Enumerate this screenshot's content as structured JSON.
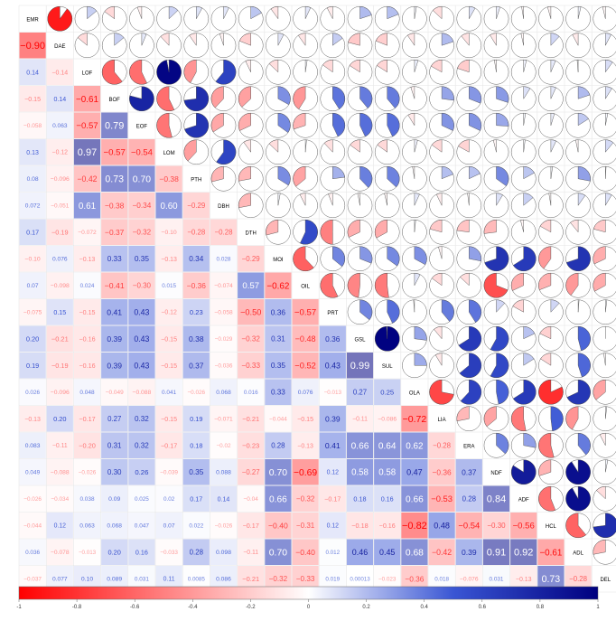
{
  "chart_data": {
    "type": "heatmap",
    "variables": [
      "EMR",
      "DAE",
      "LOF",
      "BOF",
      "EOF",
      "LOM",
      "PTH",
      "DBH",
      "DTH",
      "MOI",
      "OIL",
      "PRT",
      "GSL",
      "SUL",
      "OLA",
      "LIA",
      "ERA",
      "NDF",
      "ADF",
      "HCL",
      "ADL",
      "DEL"
    ],
    "lower_labels": [
      [],
      [
        "-0.90"
      ],
      [
        "0.14",
        "-0.14"
      ],
      [
        "-0.15",
        "0.14",
        "-0.61"
      ],
      [
        "-0.058",
        "0.063",
        "-0.57",
        "0.79"
      ],
      [
        "0.13",
        "-0.12",
        "0.97",
        "-0.57",
        "-0.54"
      ],
      [
        "0.08",
        "-0.096",
        "-0.42",
        "0.73",
        "0.70",
        "-0.38"
      ],
      [
        "0.072",
        "-0.051",
        "0.61",
        "-0.38",
        "-0.34",
        "0.60",
        "-0.29"
      ],
      [
        "0.17",
        "-0.19",
        "-0.072",
        "-0.37",
        "-0.32",
        "-0.10",
        "-0.28",
        "-0.28"
      ],
      [
        "-0.10",
        "0.076",
        "-0.13",
        "0.33",
        "0.35",
        "-0.13",
        "0.34",
        "0.028",
        "-0.29"
      ],
      [
        "0.07",
        "-0.098",
        "0.024",
        "-0.41",
        "-0.30",
        "0.015",
        "-0.36",
        "-0.074",
        "0.57",
        "-0.62"
      ],
      [
        "-0.075",
        "0.15",
        "-0.15",
        "0.41",
        "0.43",
        "-0.12",
        "0.23",
        "-0.058",
        "-0.50",
        "0.36",
        "-0.57"
      ],
      [
        "0.20",
        "-0.21",
        "-0.16",
        "0.39",
        "0.43",
        "-0.15",
        "0.38",
        "-0.029",
        "-0.32",
        "0.31",
        "-0.48",
        "0.36"
      ],
      [
        "0.19",
        "-0.19",
        "-0.16",
        "0.39",
        "0.43",
        "-0.15",
        "0.37",
        "-0.036",
        "-0.33",
        "0.35",
        "-0.52",
        "0.43",
        "0.99"
      ],
      [
        "0.026",
        "-0.096",
        "0.048",
        "-0.049",
        "-0.088",
        "0.041",
        "-0.026",
        "0.068",
        "0.016",
        "0.33",
        "0.076",
        "-0.013",
        "0.27",
        "0.25"
      ],
      [
        "-0.13",
        "0.20",
        "-0.17",
        "0.27",
        "0.32",
        "-0.15",
        "0.19",
        "-0.071",
        "-0.21",
        "-0.044",
        "-0.15",
        "0.39",
        "-0.11",
        "-0.086",
        "-0.72"
      ],
      [
        "0.083",
        "-0.11",
        "-0.20",
        "0.31",
        "0.32",
        "-0.17",
        "0.18",
        "-0.02",
        "-0.23",
        "0.28",
        "-0.13",
        "0.41",
        "0.66",
        "0.64",
        "0.62",
        "-0.28"
      ],
      [
        "0.049",
        "-0.088",
        "-0.026",
        "0.30",
        "0.26",
        "-0.039",
        "0.35",
        "0.088",
        "-0.27",
        "0.70",
        "-0.69",
        "0.12",
        "0.58",
        "0.58",
        "0.47",
        "-0.36",
        "0.37"
      ],
      [
        "-0.026",
        "-0.034",
        "0.038",
        "0.09",
        "0.025",
        "0.02",
        "0.17",
        "0.14",
        "-0.04",
        "0.66",
        "-0.32",
        "-0.17",
        "0.18",
        "0.16",
        "0.66",
        "-0.53",
        "0.28",
        "0.84"
      ],
      [
        "-0.044",
        "0.12",
        "0.063",
        "0.068",
        "0.047",
        "0.07",
        "0.022",
        "-0.026",
        "-0.17",
        "-0.40",
        "-0.31",
        "0.12",
        "-0.18",
        "-0.16",
        "-0.82",
        "0.48",
        "-0.54",
        "-0.30",
        "-0.56"
      ],
      [
        "0.036",
        "-0.078",
        "-0.013",
        "0.20",
        "0.16",
        "-0.033",
        "0.28",
        "0.098",
        "-0.11",
        "0.70",
        "-0.40",
        "0.012",
        "0.46",
        "0.45",
        "0.68",
        "-0.42",
        "0.39",
        "0.91",
        "0.92",
        "-0.61"
      ],
      [
        "-0.037",
        "0.077",
        "0.10",
        "0.089",
        "0.031",
        "0.11",
        "0.0085",
        "0.086",
        "-0.21",
        "-0.32",
        "-0.33",
        "0.019",
        "0.00013",
        "-0.023",
        "-0.36",
        "0.018",
        "-0.076",
        "0.031",
        "-0.13",
        "0.73",
        "-0.28"
      ]
    ],
    "upper_glyph": "pie",
    "lower_glyph": "number",
    "color_scale": {
      "negative": "#ff0000",
      "zero": "#ffffff",
      "positive": "#00007f",
      "mid_blue": "#3a56d4"
    },
    "colorbar_ticks": [
      "-1",
      "-0.8",
      "-0.6",
      "-0.4",
      "-0.2",
      "0",
      "0.2",
      "0.4",
      "0.6",
      "0.8",
      "1"
    ],
    "range": [
      -1,
      1
    ],
    "grid": true,
    "legend_position": "bottom"
  }
}
